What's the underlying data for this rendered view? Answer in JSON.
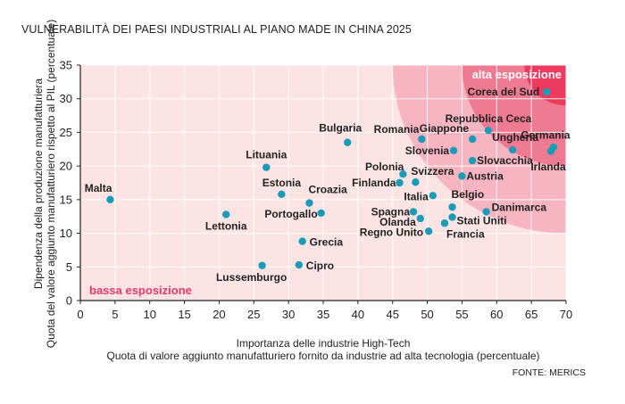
{
  "title": "VULNERABILITÀ DEI PAESI INDUSTRIALI AL PIANO MADE IN CHINA 2025",
  "source": "FONTE: MERICS",
  "colors": {
    "background": "#fde4e4",
    "zone_mid": "#f7b5c2",
    "zone_high": "#f07a92",
    "zone_top": "#ee3a5e",
    "point": "#1a9cb8",
    "low_label": "#e63a68"
  },
  "chart_data": {
    "type": "scatter",
    "title": "VULNERABILITÀ DEI PAESI INDUSTRIALI AL PIANO MADE IN CHINA 2025",
    "xlabel": [
      "Importanza delle industrie High-Tech",
      "Quota di valore aggiunto manufatturiero fornito da industrie ad alta tecnologia (percentuale)"
    ],
    "ylabel": [
      "Dipendenza della produzione manufatturiera",
      "Quota del valore aggiunto manufatturiero rispetto al PIL (percentuale)"
    ],
    "xlim": [
      0,
      70
    ],
    "ylim": [
      0,
      35
    ],
    "xticks": [
      0,
      5,
      10,
      15,
      20,
      25,
      30,
      35,
      40,
      45,
      50,
      55,
      60,
      65,
      70
    ],
    "yticks": [
      0,
      5,
      10,
      15,
      20,
      25,
      30,
      35
    ],
    "grid": true,
    "zones": [
      {
        "label": "",
        "center": [
          70,
          35
        ],
        "radius": 25
      },
      {
        "label": "",
        "center": [
          70,
          35
        ],
        "radius": 15
      },
      {
        "label": "alta esposizione",
        "center": [
          70,
          35
        ],
        "radius": 6
      }
    ],
    "zone_labels": {
      "low": "bassa esposizione",
      "high": "alta esposizione"
    },
    "points": [
      {
        "name": "Malta",
        "x": 4.3,
        "y": 15.0,
        "anchor": "end",
        "dx": 2,
        "dy": -9
      },
      {
        "name": "Lettonia",
        "x": 21.0,
        "y": 12.8,
        "anchor": "middle",
        "dx": 0,
        "dy": 17
      },
      {
        "name": "Lituania",
        "x": 26.8,
        "y": 19.8,
        "anchor": "middle",
        "dx": 0,
        "dy": -10
      },
      {
        "name": "Lussemburgo",
        "x": 26.2,
        "y": 5.2,
        "anchor": "middle",
        "dx": -12,
        "dy": 17
      },
      {
        "name": "Estonia",
        "x": 29.0,
        "y": 15.8,
        "anchor": "middle",
        "dx": 0,
        "dy": -9
      },
      {
        "name": "Croazia",
        "x": 33.0,
        "y": 14.5,
        "anchor": "start",
        "dx": -1,
        "dy": -11
      },
      {
        "name": "Portogallo",
        "x": 34.7,
        "y": 13.0,
        "anchor": "end",
        "dx": -4,
        "dy": 5
      },
      {
        "name": "Grecia",
        "x": 32.0,
        "y": 8.8,
        "anchor": "start",
        "dx": 8,
        "dy": 5
      },
      {
        "name": "Cipro",
        "x": 31.5,
        "y": 5.3,
        "anchor": "start",
        "dx": 8,
        "dy": 5
      },
      {
        "name": "Bulgaria",
        "x": 38.5,
        "y": 23.5,
        "anchor": "middle",
        "dx": -8,
        "dy": -12
      },
      {
        "name": "Romania",
        "x": 49.2,
        "y": 24.0,
        "anchor": "end",
        "dx": -3,
        "dy": -7
      },
      {
        "name": "Giappone",
        "x": 56.5,
        "y": 24.0,
        "anchor": "end",
        "dx": -4,
        "dy": -8
      },
      {
        "name": "Repubblica Ceca",
        "x": 58.8,
        "y": 25.3,
        "anchor": "middle",
        "dx": 0,
        "dy": -9
      },
      {
        "name": "Germania",
        "x": 67.8,
        "y": 22.2,
        "anchor": "middle",
        "dx": -6,
        "dy": -14
      },
      {
        "name": "Ungheria",
        "x": 62.3,
        "y": 22.4,
        "anchor": "middle",
        "dx": 3,
        "dy": -10
      },
      {
        "name": "Slovenia",
        "x": 53.8,
        "y": 22.3,
        "anchor": "end",
        "dx": -5,
        "dy": 4
      },
      {
        "name": "Slovacchia",
        "x": 56.5,
        "y": 20.8,
        "anchor": "start",
        "dx": 5,
        "dy": 4
      },
      {
        "name": "Irlanda",
        "x": 68.2,
        "y": 22.8,
        "anchor": "middle",
        "dx": -6,
        "dy": 26
      },
      {
        "name": "Corea del Sud",
        "x": 67.2,
        "y": 31.0,
        "anchor": "end",
        "dx": -8,
        "dy": 4
      },
      {
        "name": "Polonia",
        "x": 46.5,
        "y": 18.8,
        "anchor": "end",
        "dx": 1,
        "dy": -4
      },
      {
        "name": "Finlanda",
        "x": 46.0,
        "y": 17.5,
        "anchor": "end",
        "dx": -4,
        "dy": 4
      },
      {
        "name": "Svizzera",
        "x": 48.3,
        "y": 17.6,
        "anchor": "start",
        "dx": -5,
        "dy": -8
      },
      {
        "name": "Austria",
        "x": 55.0,
        "y": 18.5,
        "anchor": "start",
        "dx": 5,
        "dy": 4
      },
      {
        "name": "Italia",
        "x": 50.8,
        "y": 15.6,
        "anchor": "end",
        "dx": -5,
        "dy": 5
      },
      {
        "name": "Belgio",
        "x": 53.6,
        "y": 13.9,
        "anchor": "start",
        "dx": -1,
        "dy": -10
      },
      {
        "name": "Danimarca",
        "x": 58.5,
        "y": 13.2,
        "anchor": "start",
        "dx": 6,
        "dy": -1
      },
      {
        "name": "Spagna",
        "x": 48.0,
        "y": 13.2,
        "anchor": "end",
        "dx": -4,
        "dy": 4
      },
      {
        "name": "Olanda",
        "x": 49.0,
        "y": 12.2,
        "anchor": "end",
        "dx": -5,
        "dy": 8
      },
      {
        "name": "Stati Uniti",
        "x": 53.6,
        "y": 12.4,
        "anchor": "start",
        "dx": 5,
        "dy": 8
      },
      {
        "name": "Regno Unito",
        "x": 50.2,
        "y": 10.3,
        "anchor": "end",
        "dx": -6,
        "dy": 5
      },
      {
        "name": "Francia",
        "x": 52.5,
        "y": 11.5,
        "anchor": "start",
        "dx": 2,
        "dy": 16
      }
    ]
  }
}
